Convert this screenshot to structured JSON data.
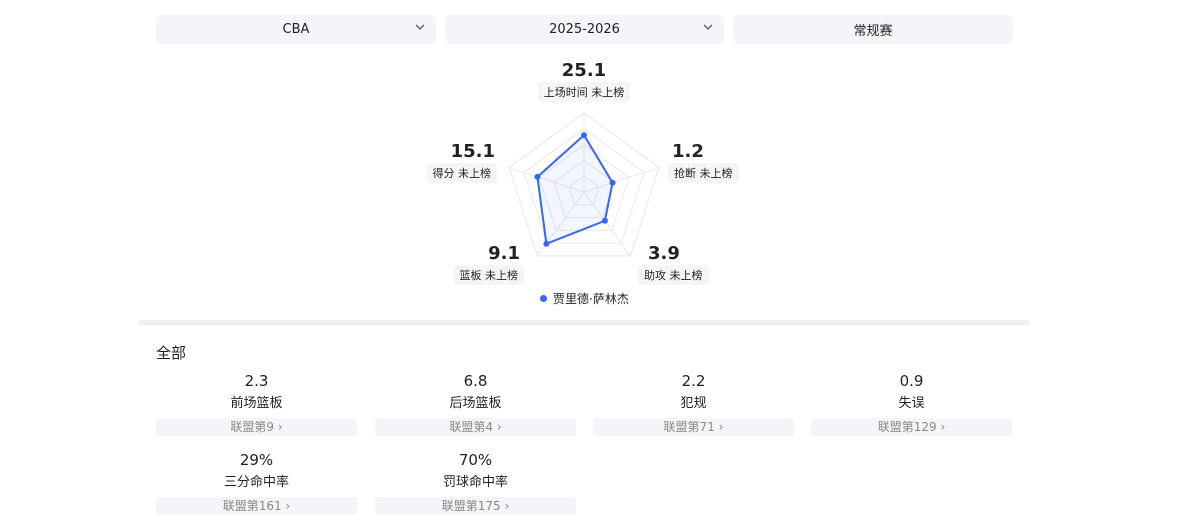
{
  "filters": {
    "league": "CBA",
    "season": "2025-2026",
    "type": "常规赛"
  },
  "chart_data": {
    "type": "radar",
    "axes": [
      {
        "value": "25.1",
        "label": "上场时间 未上榜",
        "level": 0.72
      },
      {
        "value": "1.2",
        "label": "抢断 未上榜",
        "level": 0.38
      },
      {
        "value": "3.9",
        "label": "助攻 未上榜",
        "level": 0.45
      },
      {
        "value": "9.1",
        "label": "篮板 未上榜",
        "level": 0.81
      },
      {
        "value": "15.1",
        "label": "得分 未上榜",
        "level": 0.62
      }
    ],
    "series": [
      {
        "name": "贾里德·萨林杰",
        "color": "#3366ff"
      }
    ],
    "rings": 5
  },
  "section_title": "全部",
  "stats": [
    {
      "value": "2.3",
      "name": "前场篮板",
      "rank": "联盟第9 ›"
    },
    {
      "value": "6.8",
      "name": "后场篮板",
      "rank": "联盟第4 ›"
    },
    {
      "value": "2.2",
      "name": "犯规",
      "rank": "联盟第71 ›"
    },
    {
      "value": "0.9",
      "name": "失误",
      "rank": "联盟第129 ›"
    },
    {
      "value": "29%",
      "name": "三分命中率",
      "rank": "联盟第161 ›"
    },
    {
      "value": "70%",
      "name": "罚球命中率",
      "rank": "联盟第175 ›"
    }
  ]
}
